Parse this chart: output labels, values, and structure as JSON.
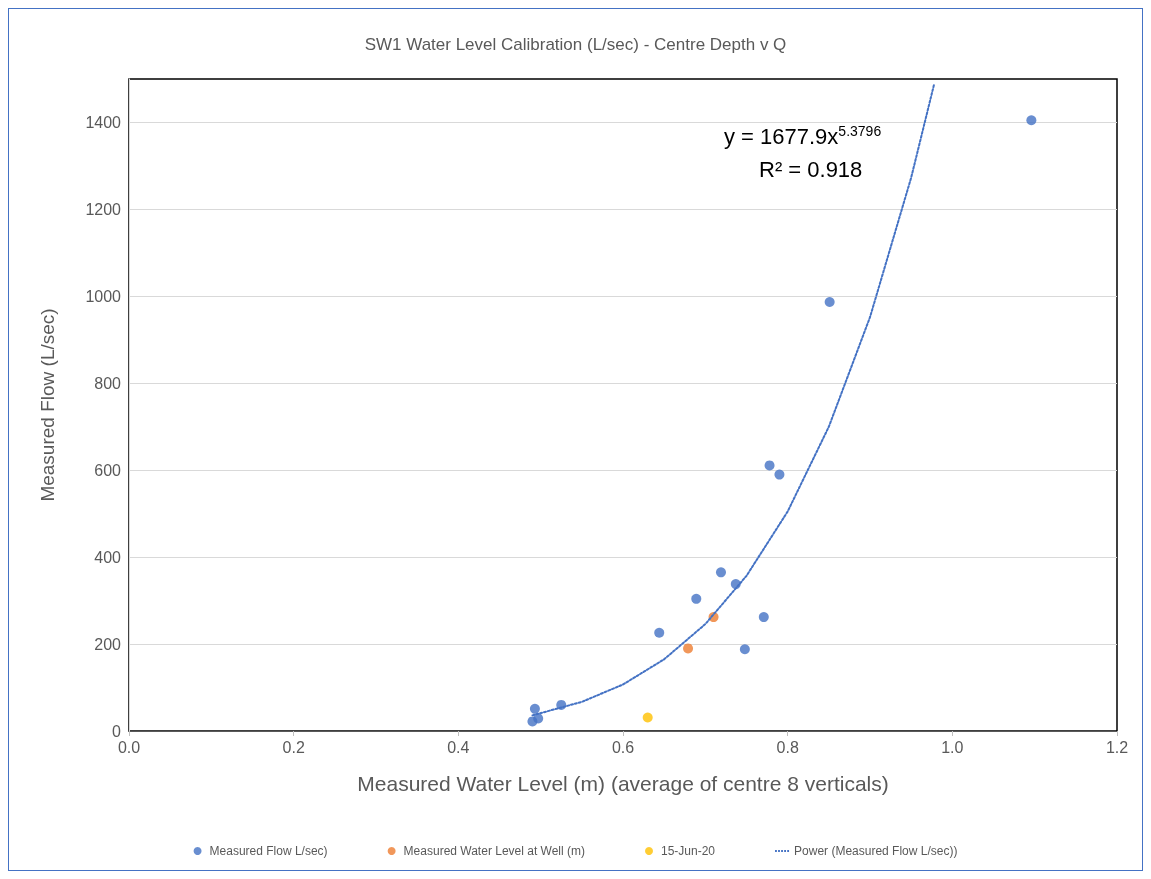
{
  "chart_data": {
    "type": "scatter",
    "title": "SW1 Water Level Calibration (L/sec) - Centre Depth v Q",
    "xlabel": "Measured Water Level (m) (average of centre 8 verticals)",
    "ylabel": "Measured Flow (L/sec)",
    "series": [
      {
        "name": "Measured Flow L/sec)",
        "color": "#4472c4",
        "x": [
          0.493,
          0.49,
          0.497,
          0.525,
          0.644,
          0.689,
          0.719,
          0.737,
          0.771,
          0.748,
          0.778,
          0.79,
          0.851,
          1.096
        ],
        "values": [
          51,
          22,
          29,
          60,
          226,
          304,
          365,
          338,
          262,
          188,
          611,
          590,
          987,
          1405
        ]
      },
      {
        "name": "Measured Water Level at Well (m)",
        "color": "#ed7d31",
        "x": [
          0.71,
          0.679
        ],
        "values": [
          262,
          190
        ]
      },
      {
        "name": "15-Jun-20",
        "color": "#ffc000",
        "x": [
          0.63
        ],
        "values": [
          31
        ]
      },
      {
        "name": "Power (Measured Flow L/sec))",
        "type": "line",
        "line_style": "dotted",
        "marker": "none",
        "color": "#4472c4",
        "x": [
          0.49,
          0.55,
          0.6,
          0.65,
          0.7,
          0.75,
          0.8,
          0.85,
          0.9,
          0.95,
          0.978
        ],
        "values": [
          36,
          67,
          107,
          165,
          246,
          357,
          505,
          700,
          952,
          1273,
          1489
        ]
      }
    ],
    "marker": "circle",
    "xlim": [
      0,
      1.2
    ],
    "xticks": [
      {
        "value": 0,
        "label": "0.0"
      },
      {
        "value": 0.2,
        "label": "0.2"
      },
      {
        "value": 0.4,
        "label": "0.4"
      },
      {
        "value": 0.6,
        "label": "0.6"
      },
      {
        "value": 0.8,
        "label": "0.8"
      },
      {
        "value": 1,
        "label": "1.0"
      },
      {
        "value": 1.2,
        "label": "1.2"
      }
    ],
    "ylim": [
      0,
      1500
    ],
    "yticks": [
      0,
      200,
      400,
      600,
      800,
      1000,
      1200,
      1400
    ],
    "grid": "y",
    "legend": "bottom",
    "annotations": [
      "y = 1677.9x$^{5.3796}$",
      "R² = 0.918"
    ]
  }
}
